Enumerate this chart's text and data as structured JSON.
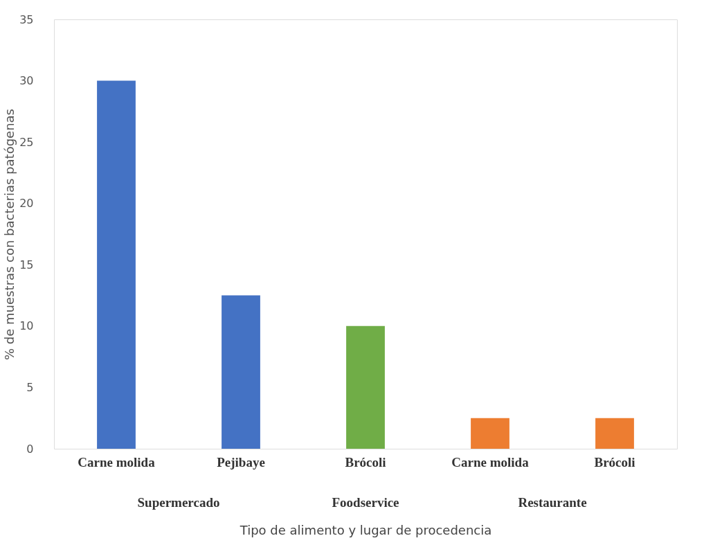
{
  "chart_data": {
    "type": "bar",
    "xlabel": "Tipo de alimento y lugar de procedencia",
    "ylabel": "% de muestras con bacterias patógenas",
    "categories": [
      "Carne molida",
      "Pejibaye",
      "Brócoli",
      "Carne molida",
      "Brócoli"
    ],
    "values": [
      30,
      12.5,
      10,
      2.5,
      2.5
    ],
    "colors": [
      "#4472c4",
      "#4472c4",
      "#70ad47",
      "#ed7d31",
      "#ed7d31"
    ],
    "ylim": [
      0,
      35
    ],
    "yticks": [
      0,
      5,
      10,
      15,
      20,
      25,
      30,
      35
    ],
    "grid": false,
    "annotations": [
      "Supermercado",
      "Foodservice",
      "Restaurante"
    ]
  }
}
